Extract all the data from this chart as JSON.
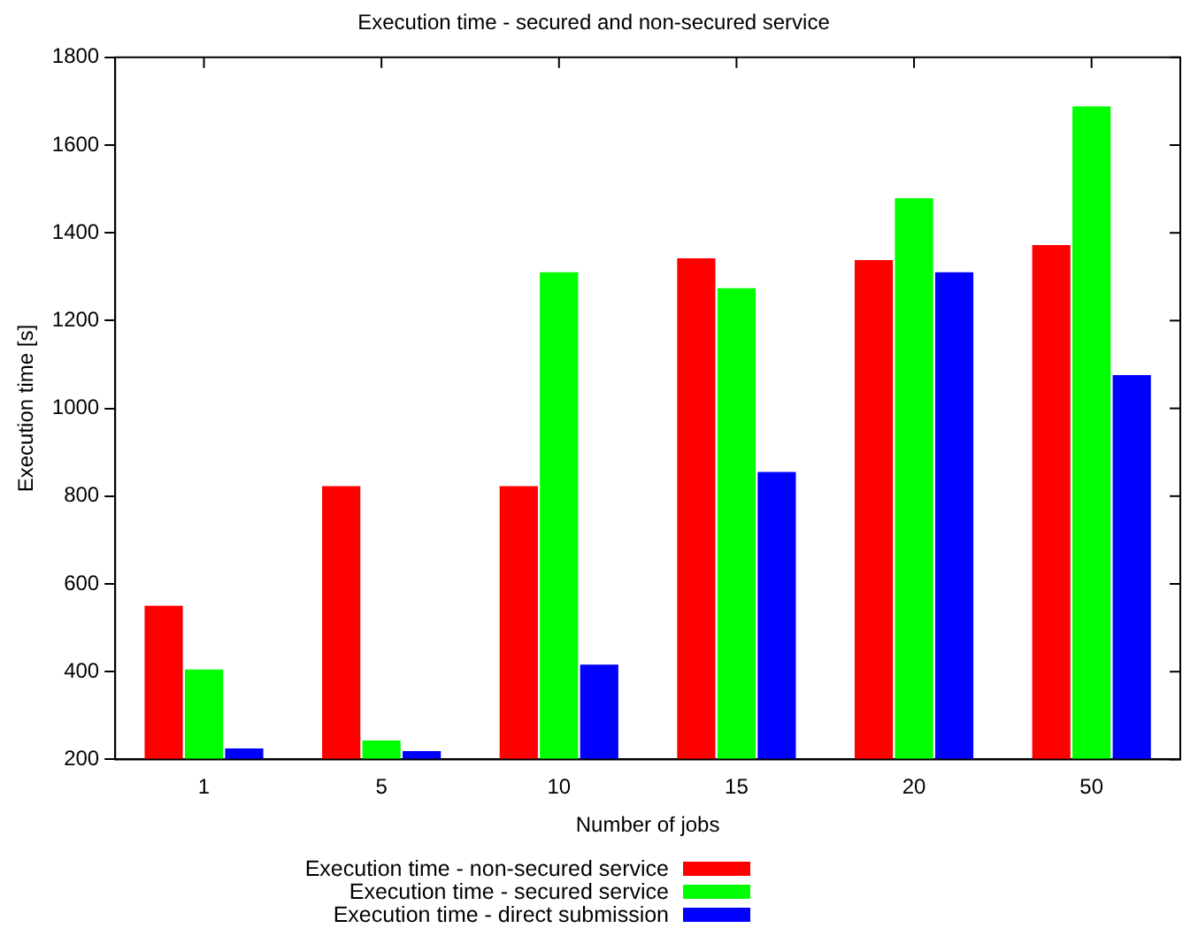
{
  "chart_data": {
    "type": "bar",
    "title": "Execution time - secured and non-secured service",
    "xlabel": "Number of jobs",
    "ylabel": "Execution time [s]",
    "categories": [
      "1",
      "5",
      "10",
      "15",
      "20",
      "50"
    ],
    "series": [
      {
        "name": "Execution time - non-secured service",
        "color": "#ff0000",
        "values": [
          550,
          823,
          823,
          1342,
          1338,
          1372
        ]
      },
      {
        "name": "Execution time - secured service",
        "color": "#00ff00",
        "values": [
          405,
          243,
          1310,
          1274,
          1479,
          1688
        ]
      },
      {
        "name": "Execution time - direct submission",
        "color": "#0000ff",
        "values": [
          225,
          219,
          416,
          855,
          1310,
          1076
        ]
      }
    ],
    "ylim": [
      200,
      1800
    ],
    "yticks": [
      200,
      400,
      600,
      800,
      1000,
      1200,
      1400,
      1600,
      1800
    ],
    "grid": false,
    "legend": "bottom"
  }
}
